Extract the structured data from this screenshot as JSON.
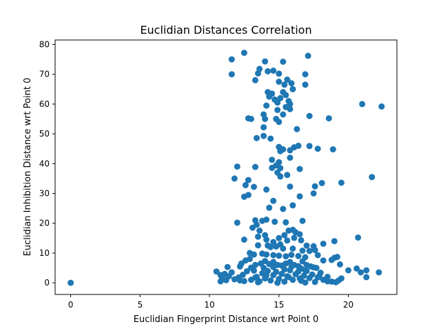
{
  "chart_data": {
    "type": "scatter",
    "title": "Euclidian Distances Correlation",
    "xlabel": "Euclidian Fingerprint Distance wrt Point 0",
    "ylabel": "Euclidian Inhibition Distance wrt Point 0",
    "xlim": [
      -1.12,
      23.5
    ],
    "ylim": [
      -3.9,
      81.5
    ],
    "xticks": [
      0,
      5,
      10,
      15,
      20
    ],
    "yticks": [
      0,
      10,
      20,
      30,
      40,
      50,
      60,
      70,
      80
    ],
    "grid": false,
    "marker_color": "#1f77b4",
    "points": [
      [
        0.0,
        0.0
      ],
      [
        11.6,
        75.0
      ],
      [
        12.5,
        77.2
      ],
      [
        17.1,
        76.2
      ],
      [
        11.6,
        70.0
      ],
      [
        13.3,
        68.0
      ],
      [
        13.5,
        70.3
      ],
      [
        13.6,
        71.8
      ],
      [
        14.0,
        74.3
      ],
      [
        14.2,
        71.0
      ],
      [
        14.6,
        71.2
      ],
      [
        15.0,
        70.2
      ],
      [
        15.3,
        74.2
      ],
      [
        15.0,
        67.5
      ],
      [
        15.4,
        66.5
      ],
      [
        15.6,
        68.2
      ],
      [
        15.9,
        67.0
      ],
      [
        16.0,
        65.0
      ],
      [
        16.9,
        70.0
      ],
      [
        16.9,
        66.5
      ],
      [
        14.2,
        64.0
      ],
      [
        14.3,
        62.5
      ],
      [
        14.5,
        63.5
      ],
      [
        14.7,
        61.5
      ],
      [
        14.9,
        60.5
      ],
      [
        15.1,
        62.0
      ],
      [
        15.3,
        64.0
      ],
      [
        15.5,
        63.0
      ],
      [
        15.7,
        61.0
      ],
      [
        15.8,
        60.0
      ],
      [
        15.5,
        59.0
      ],
      [
        14.9,
        58.0
      ],
      [
        14.1,
        59.5
      ],
      [
        13.9,
        56.5
      ],
      [
        14.0,
        55.0
      ],
      [
        14.8,
        55.0
      ],
      [
        15.0,
        54.0
      ],
      [
        15.3,
        56.5
      ],
      [
        15.8,
        58.3
      ],
      [
        12.8,
        55.2
      ],
      [
        13.0,
        55.0
      ],
      [
        17.2,
        56.0
      ],
      [
        18.6,
        55.2
      ],
      [
        21.0,
        60.0
      ],
      [
        22.4,
        59.2
      ],
      [
        16.3,
        51.6
      ],
      [
        13.9,
        52.2
      ],
      [
        13.9,
        49.3
      ],
      [
        13.4,
        48.6
      ],
      [
        14.4,
        48.4
      ],
      [
        15.0,
        45.6
      ],
      [
        15.1,
        44.2
      ],
      [
        15.3,
        44.8
      ],
      [
        15.8,
        44.5
      ],
      [
        16.1,
        45.5
      ],
      [
        16.4,
        46.0
      ],
      [
        17.2,
        45.9
      ],
      [
        17.8,
        45.0
      ],
      [
        18.9,
        44.8
      ],
      [
        14.5,
        41.3
      ],
      [
        15.0,
        40.5
      ],
      [
        15.8,
        42.0
      ],
      [
        12.0,
        39.0
      ],
      [
        13.3,
        38.9
      ],
      [
        14.5,
        38.6
      ],
      [
        14.8,
        39.4
      ],
      [
        15.1,
        38.5
      ],
      [
        14.9,
        37.0
      ],
      [
        15.1,
        35.7
      ],
      [
        15.6,
        36.2
      ],
      [
        16.5,
        38.2
      ],
      [
        11.8,
        35.0
      ],
      [
        12.8,
        34.5
      ],
      [
        12.6,
        32.8
      ],
      [
        13.2,
        32.2
      ],
      [
        14.1,
        31.3
      ],
      [
        15.8,
        32.3
      ],
      [
        17.6,
        32.4
      ],
      [
        18.1,
        33.5
      ],
      [
        19.5,
        33.6
      ],
      [
        21.7,
        35.5
      ],
      [
        12.5,
        28.9
      ],
      [
        12.8,
        29.5
      ],
      [
        16.5,
        29.0
      ],
      [
        17.5,
        30.0
      ],
      [
        14.6,
        27.5
      ],
      [
        14.3,
        25.2
      ],
      [
        15.3,
        24.8
      ],
      [
        16.0,
        26.0
      ],
      [
        12.0,
        20.2
      ],
      [
        13.3,
        21.0
      ],
      [
        13.8,
        20.8
      ],
      [
        14.1,
        21.2
      ],
      [
        14.7,
        20.5
      ],
      [
        15.5,
        20.3
      ],
      [
        16.7,
        20.8
      ],
      [
        13.1,
        18.5
      ],
      [
        13.4,
        19.5
      ],
      [
        13.6,
        17.5
      ],
      [
        13.5,
        15.5
      ],
      [
        14.0,
        16.0
      ],
      [
        15.0,
        15.0
      ],
      [
        15.4,
        16.0
      ],
      [
        15.7,
        17.5
      ],
      [
        16.0,
        17.8
      ],
      [
        16.2,
        17.0
      ],
      [
        16.5,
        16.3
      ],
      [
        12.5,
        14.5
      ],
      [
        14.1,
        14.5
      ],
      [
        14.6,
        13.7
      ],
      [
        15.1,
        12.9
      ],
      [
        15.6,
        14.2
      ],
      [
        16.1,
        15.1
      ],
      [
        16.6,
        14.3
      ],
      [
        17.0,
        12.5
      ],
      [
        17.5,
        12.3
      ],
      [
        18.2,
        13.1
      ],
      [
        19.0,
        14.0
      ],
      [
        20.7,
        15.2
      ],
      [
        13.5,
        12.6
      ],
      [
        14.2,
        12.5
      ],
      [
        14.4,
        12.0
      ],
      [
        14.8,
        12.2
      ],
      [
        15.3,
        11.5
      ],
      [
        16.0,
        11.5
      ],
      [
        16.7,
        10.8
      ],
      [
        17.2,
        10.7
      ],
      [
        17.6,
        11.0
      ],
      [
        12.9,
        10.0
      ],
      [
        13.2,
        9.5
      ],
      [
        13.8,
        9.8
      ],
      [
        14.1,
        9.5
      ],
      [
        14.6,
        9.3
      ],
      [
        15.0,
        9.1
      ],
      [
        15.5,
        8.9
      ],
      [
        15.9,
        9.4
      ],
      [
        16.4,
        9.0
      ],
      [
        16.9,
        8.6
      ],
      [
        17.8,
        9.3
      ],
      [
        19.0,
        8.4
      ],
      [
        19.2,
        8.7
      ],
      [
        12.3,
        6.5
      ],
      [
        12.6,
        7.5
      ],
      [
        12.9,
        8.0
      ],
      [
        13.3,
        6.0
      ],
      [
        13.7,
        6.5
      ],
      [
        14.0,
        7.3
      ],
      [
        14.3,
        6.3
      ],
      [
        14.6,
        7.0
      ],
      [
        14.9,
        6.0
      ],
      [
        15.2,
        5.8
      ],
      [
        15.5,
        6.5
      ],
      [
        15.8,
        7.0
      ],
      [
        16.1,
        6.0
      ],
      [
        16.4,
        5.6
      ],
      [
        16.7,
        7.2
      ],
      [
        17.0,
        6.0
      ],
      [
        17.3,
        5.5
      ],
      [
        17.7,
        5.0
      ],
      [
        18.2,
        7.5
      ],
      [
        18.8,
        7.7
      ],
      [
        19.4,
        6.2
      ],
      [
        12.2,
        5.5
      ],
      [
        11.3,
        5.3
      ],
      [
        20.0,
        4.2
      ],
      [
        20.6,
        4.8
      ],
      [
        20.9,
        3.5
      ],
      [
        21.3,
        4.2
      ],
      [
        22.2,
        3.5
      ],
      [
        21.3,
        1.9
      ],
      [
        10.5,
        3.8
      ],
      [
        10.8,
        2.6
      ],
      [
        10.9,
        1.8
      ],
      [
        11.1,
        3.0
      ],
      [
        11.4,
        2.2
      ],
      [
        11.6,
        3.5
      ],
      [
        11.8,
        1.2
      ],
      [
        12.1,
        1.8
      ],
      [
        12.4,
        2.7
      ],
      [
        12.7,
        3.9
      ],
      [
        13.0,
        1.0
      ],
      [
        13.2,
        4.1
      ],
      [
        13.4,
        2.0
      ],
      [
        13.6,
        0.5
      ],
      [
        13.8,
        3.2
      ],
      [
        14.0,
        1.5
      ],
      [
        14.2,
        4.0
      ],
      [
        14.4,
        0.8
      ],
      [
        14.6,
        2.6
      ],
      [
        14.8,
        3.7
      ],
      [
        15.0,
        1.3
      ],
      [
        15.2,
        3.0
      ],
      [
        15.4,
        0.4
      ],
      [
        15.6,
        2.2
      ],
      [
        15.8,
        4.2
      ],
      [
        16.0,
        1.0
      ],
      [
        16.2,
        2.9
      ],
      [
        16.4,
        3.8
      ],
      [
        16.6,
        0.7
      ],
      [
        16.8,
        2.4
      ],
      [
        17.0,
        4.0
      ],
      [
        17.2,
        1.6
      ],
      [
        17.4,
        2.8
      ],
      [
        17.6,
        0.3
      ],
      [
        17.8,
        1.8
      ],
      [
        18.0,
        3.4
      ],
      [
        18.2,
        1.0
      ],
      [
        18.5,
        2.0
      ],
      [
        18.8,
        0.4
      ],
      [
        19.1,
        0.2
      ],
      [
        19.3,
        0.8
      ],
      [
        19.5,
        1.5
      ],
      [
        10.8,
        0.5
      ],
      [
        11.2,
        0.9
      ],
      [
        12.5,
        0.6
      ],
      [
        13.5,
        0.2
      ],
      [
        14.9,
        0.0
      ],
      [
        16.9,
        0.1
      ],
      [
        18.5,
        0.5
      ],
      [
        12.2,
        0.8
      ],
      [
        13.9,
        5.0
      ],
      [
        15.4,
        4.5
      ],
      [
        16.6,
        4.8
      ],
      [
        17.5,
        5.2
      ],
      [
        14.6,
        5.3
      ],
      [
        13.0,
        5.1
      ],
      [
        15.9,
        5.4
      ],
      [
        16.9,
        4.2
      ],
      [
        13.3,
        1.8
      ],
      [
        14.1,
        2.5
      ],
      [
        15.7,
        1.9
      ],
      [
        16.5,
        1.5
      ],
      [
        17.9,
        2.3
      ]
    ]
  }
}
